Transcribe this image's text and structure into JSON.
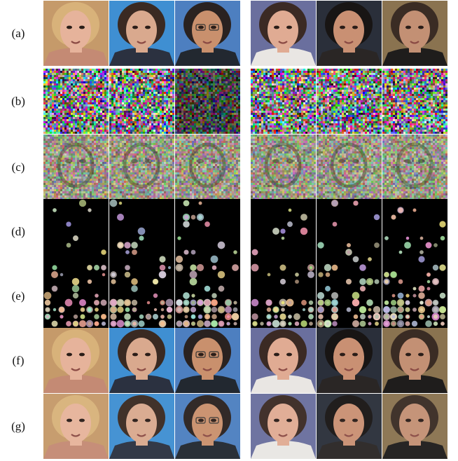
{
  "figure": {
    "row_labels": [
      "(a)",
      "(b)",
      "(c)",
      "(d)",
      "(e)",
      "(f)",
      "(g)"
    ],
    "row_kinds": [
      "face",
      "noise",
      "noise-face",
      "sparse",
      "sparse-dense",
      "face",
      "face"
    ],
    "column_subjects": [
      {
        "group": "left",
        "name": "blonde-woman",
        "skin": "#e6b39b",
        "hair": "#d8b27a",
        "bg": "#c59a6a",
        "cloth": "#c48a74"
      },
      {
        "group": "left",
        "name": "young-man-suit",
        "skin": "#d9a98e",
        "hair": "#3a2a22",
        "bg": "#3f8fd2",
        "cloth": "#2b3140"
      },
      {
        "group": "left",
        "name": "man-glasses",
        "skin": "#c9906d",
        "hair": "#2a2220",
        "bg": "#4d7fc0",
        "cloth": "#222830"
      },
      {
        "group": "right",
        "name": "brunette-woman",
        "skin": "#e0ab93",
        "hair": "#3b2a24",
        "bg": "#6a6f9e",
        "cloth": "#e9e6e3"
      },
      {
        "group": "right",
        "name": "dark-hair-woman",
        "skin": "#c99073",
        "hair": "#181514",
        "bg": "#2a2f3a",
        "cloth": "#2a2625"
      },
      {
        "group": "right",
        "name": "bald-man",
        "skin": "#c39074",
        "hair": "#3a2c24",
        "bg": "#8a7350",
        "cloth": "#1f1d1c"
      }
    ],
    "colors": {
      "background": "#ffffff",
      "tile_black": "#000000"
    }
  }
}
